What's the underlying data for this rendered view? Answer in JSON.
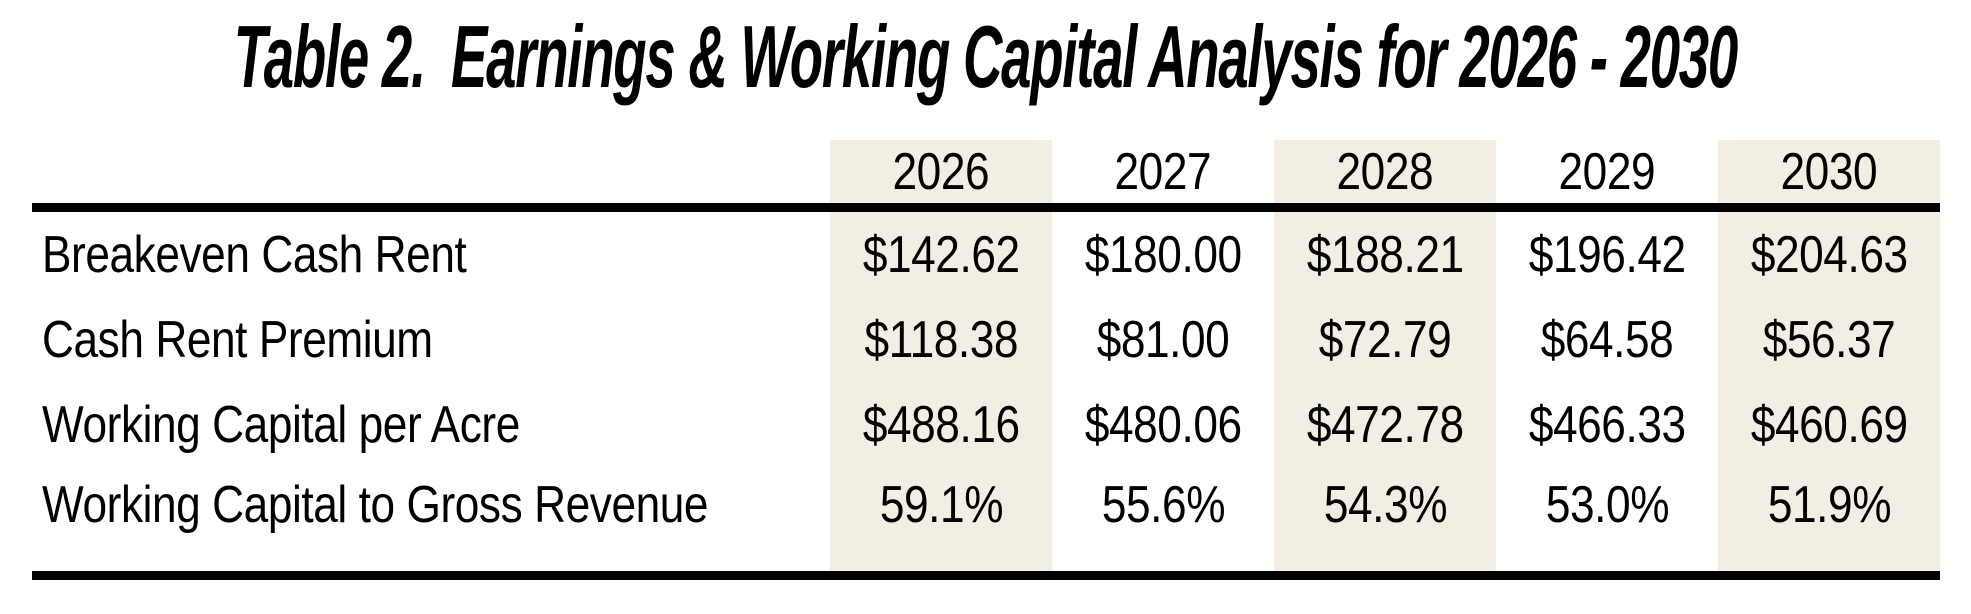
{
  "title": {
    "prefix": "Table 2.",
    "text": "Earnings & Working Capital Analysis for 2026 - 2030"
  },
  "chart_data": {
    "type": "table",
    "title": "Table 2. Earnings & Working Capital Analysis for 2026 - 2030",
    "columns": [
      "2026",
      "2027",
      "2028",
      "2029",
      "2030"
    ],
    "rows": [
      {
        "label": "Breakeven Cash Rent",
        "values": [
          "$142.62",
          "$180.00",
          "$188.21",
          "$196.42",
          "$204.63"
        ]
      },
      {
        "label": "Cash Rent Premium",
        "values": [
          "$118.38",
          "$81.00",
          "$72.79",
          "$64.58",
          "$56.37"
        ]
      },
      {
        "label": "Working Capital per Acre",
        "values": [
          "$488.16",
          "$480.06",
          "$472.78",
          "$466.33",
          "$460.69"
        ]
      },
      {
        "label": "Working Capital to Gross Revenue",
        "values": [
          "59.1%",
          "55.6%",
          "54.3%",
          "53.0%",
          "51.9%"
        ]
      }
    ],
    "shaded_columns": [
      "2026",
      "2028",
      "2030"
    ],
    "layout": {
      "grid": "off",
      "rules": "thick horizontal above and below body"
    }
  },
  "colors": {
    "band": "#f2eee4",
    "rule": "#000000",
    "text": "#000000",
    "background": "#ffffff"
  }
}
